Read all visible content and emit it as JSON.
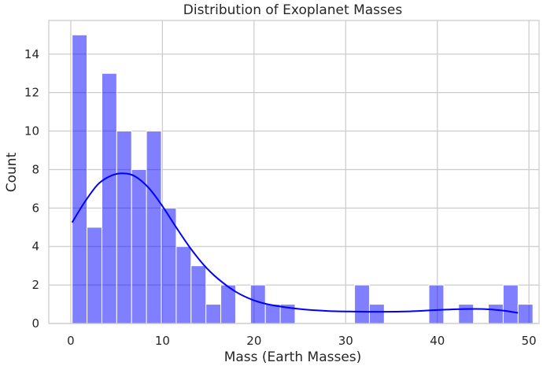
{
  "chart_data": {
    "type": "bar",
    "title": "Distribution of Exoplanet Masses",
    "xlabel": "Mass (Earth Masses)",
    "ylabel": "Count",
    "xlim": [
      -2.4,
      51.1
    ],
    "ylim": [
      0,
      15.75
    ],
    "x_ticks": [
      0,
      10,
      20,
      30,
      40,
      50
    ],
    "y_ticks": [
      0,
      2,
      4,
      6,
      8,
      10,
      12,
      14
    ],
    "grid": true,
    "bar_color": "#0000ff",
    "bar_opacity": 0.5,
    "kde_color": "#0000ff",
    "bins": {
      "start": 0.15,
      "width": 1.622,
      "counts": [
        15,
        5,
        13,
        10,
        8,
        10,
        6,
        4,
        3,
        1,
        2,
        0,
        2,
        1,
        1,
        0,
        0,
        0,
        0,
        2,
        1,
        0,
        0,
        0,
        2,
        0,
        1,
        0,
        1,
        2,
        1
      ]
    },
    "kde": {
      "x": [
        0.15,
        1.5,
        3,
        4.5,
        5.8,
        7,
        8.5,
        10,
        11.5,
        13,
        14.5,
        16,
        18,
        20,
        22,
        25,
        28,
        31,
        34,
        37,
        40,
        43,
        45,
        47,
        48.8
      ],
      "y": [
        5.25,
        6.3,
        7.25,
        7.7,
        7.8,
        7.65,
        7.05,
        6.1,
        5.0,
        3.95,
        3.05,
        2.35,
        1.65,
        1.2,
        0.95,
        0.75,
        0.65,
        0.62,
        0.61,
        0.63,
        0.7,
        0.75,
        0.75,
        0.68,
        0.55
      ]
    }
  }
}
